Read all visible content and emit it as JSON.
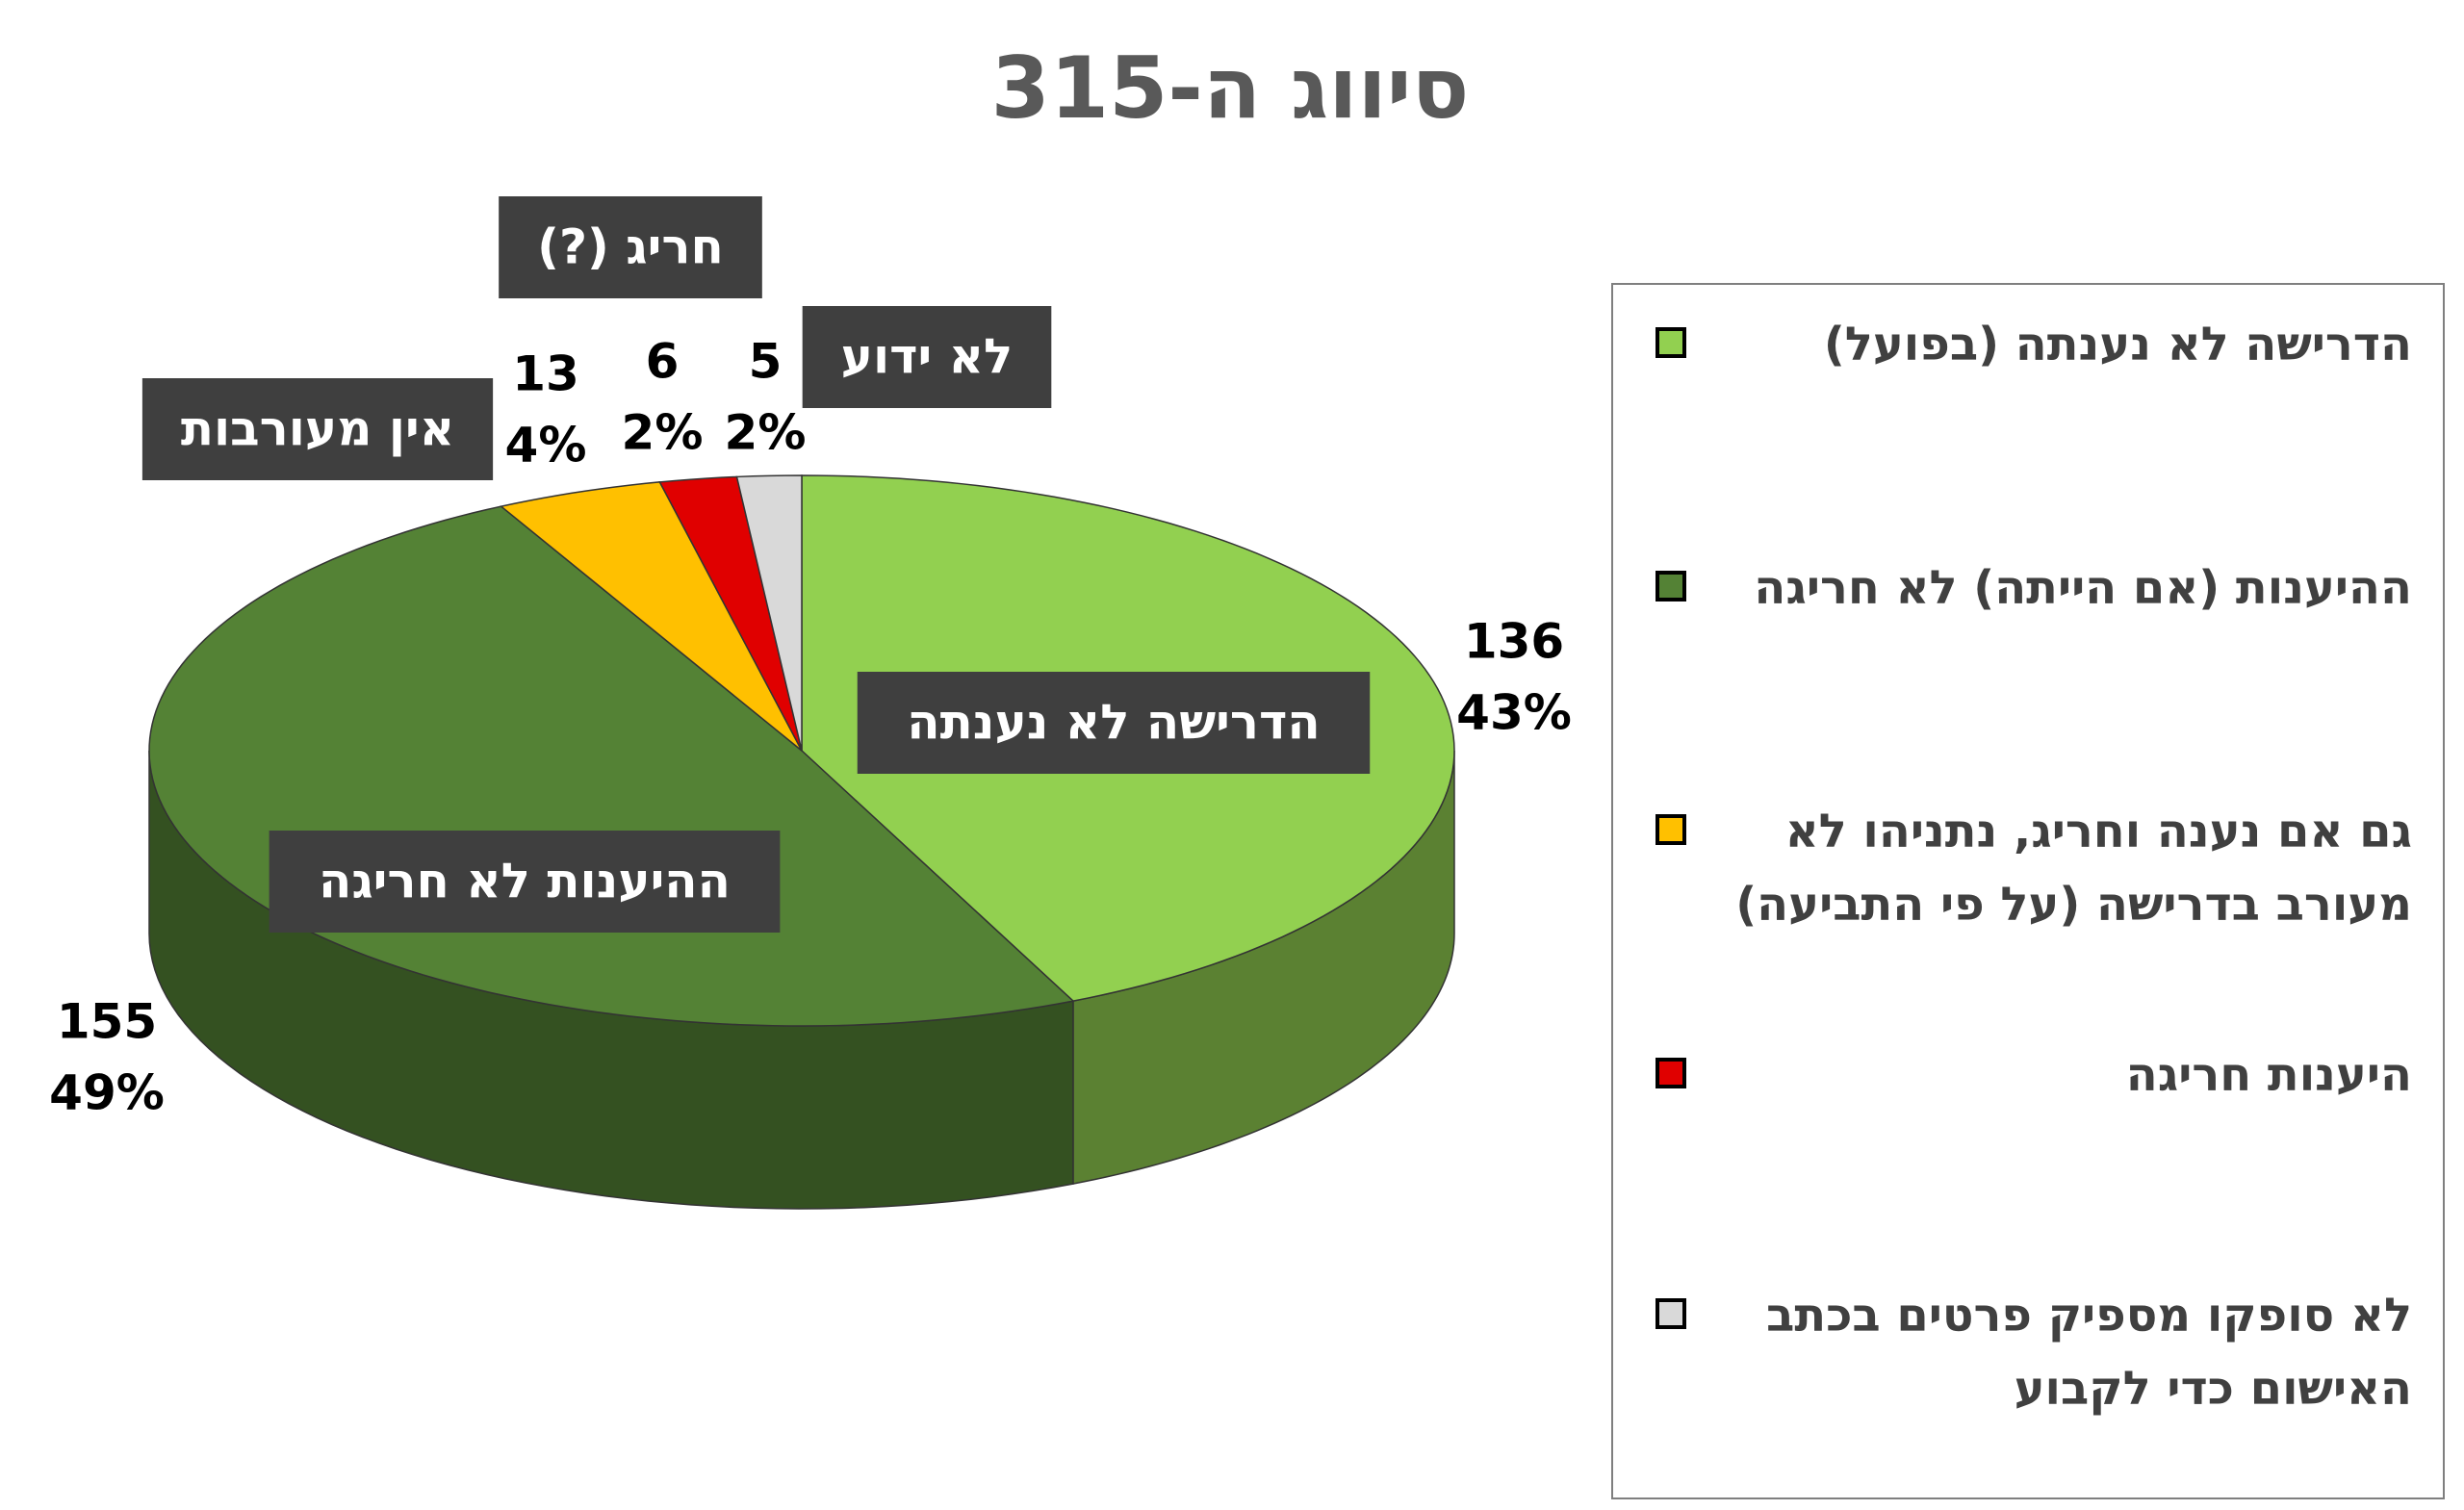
{
  "chart_data": {
    "type": "pie3d",
    "title": "סיווג ה-315",
    "categories": [
      "הדרישה לא נענתה (בפועל)",
      "ההיענות (אם הייתה) לא חריגה",
      "גם אם נענה וחריג, נתניהו לא מעורב בדרישה (על פי התביעה)",
      "היענות חריגה",
      "לא סופקו מספיק פרטים בכתב האישום כדי לקבוע"
    ],
    "slice_labels": [
      "הדרישה לא נענתה",
      "ההיענות לא חריגה",
      "אין מעורבות",
      "חריג (?)",
      "לא ידוע"
    ],
    "values": [
      136,
      155,
      13,
      6,
      5
    ],
    "percent_labels": [
      "43%",
      "49%",
      "4%",
      "2%",
      "2%"
    ],
    "colors": [
      "#92d050",
      "#548235",
      "#ffc000",
      "#e00000",
      "#d9d9d9"
    ]
  }
}
